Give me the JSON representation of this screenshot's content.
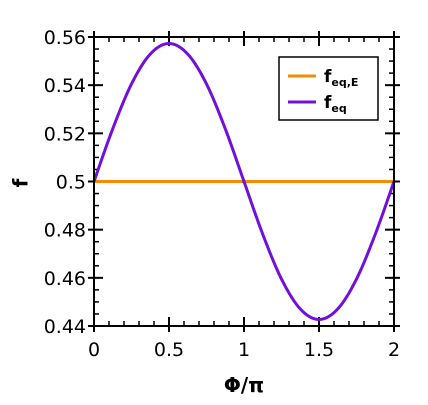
{
  "chart_data": {
    "type": "line",
    "xlabel": "Φ/π",
    "ylabel": "f",
    "xlim": [
      0,
      2
    ],
    "ylim": [
      0.44,
      0.56
    ],
    "xticks": [
      0,
      0.5,
      1,
      1.5,
      2
    ],
    "xtick_labels": [
      "0",
      "0.5",
      "1",
      "1.5",
      "2"
    ],
    "yticks": [
      0.44,
      0.46,
      0.48,
      0.5,
      0.52,
      0.54,
      0.56
    ],
    "ytick_labels": [
      "0.44",
      "0.46",
      "0.48",
      "0.5",
      "0.52",
      "0.54",
      "0.56"
    ],
    "grid": false,
    "legend_position": "top-right",
    "series": [
      {
        "name_main": "f",
        "name_sub": "eq,E",
        "color": "#f28c00",
        "x": [
          0,
          0.25,
          0.5,
          0.75,
          1,
          1.25,
          1.5,
          1.75,
          2
        ],
        "y": [
          0.5,
          0.5,
          0.5,
          0.5,
          0.5,
          0.5,
          0.5,
          0.5,
          0.5
        ]
      },
      {
        "name_main": "f",
        "name_sub": "eq",
        "color": "#7010d8",
        "x": [
          0,
          0.125,
          0.25,
          0.375,
          0.5,
          0.625,
          0.75,
          0.875,
          1,
          1.125,
          1.25,
          1.375,
          1.5,
          1.625,
          1.75,
          1.875,
          2
        ],
        "y": [
          0.5,
          0.5219,
          0.5405,
          0.5529,
          0.5573,
          0.5529,
          0.5405,
          0.5219,
          0.5,
          0.4781,
          0.4595,
          0.4471,
          0.4427,
          0.4471,
          0.4595,
          0.4781,
          0.5
        ]
      }
    ]
  }
}
